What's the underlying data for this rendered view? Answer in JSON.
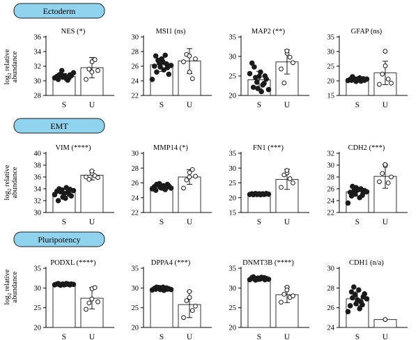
{
  "figure": {
    "ylabel_line1": "log",
    "ylabel_sub": "2",
    "ylabel_line1_rest": " relative",
    "ylabel_line2": "abundance",
    "sections": [
      "Ectoderm",
      "EMT",
      "Pluripotency"
    ]
  },
  "chart_data": [
    {
      "type": "bar",
      "section": "Ectoderm",
      "title": "NES (*)",
      "categories": [
        "S",
        "U"
      ],
      "values": [
        30.6,
        31.8
      ],
      "error": [
        0.4,
        1.4
      ],
      "ylim": [
        28,
        36
      ],
      "yticks": [
        28,
        30,
        32,
        34,
        36
      ],
      "points": {
        "S": [
          30.4,
          30.6,
          30.8,
          30.2,
          30.9,
          30.5,
          31.4,
          30.7,
          30.3,
          30.6,
          30.1,
          30.8,
          30.4,
          30.7,
          31.1
        ],
        "U": [
          30.2,
          31.6,
          32.6,
          31.2,
          32.9,
          31.4
        ]
      }
    },
    {
      "type": "bar",
      "section": "Ectoderm",
      "title": "MSI1 (ns)",
      "categories": [
        "S",
        "U"
      ],
      "values": [
        26.2,
        26.7
      ],
      "error": [
        0.9,
        1.7
      ],
      "ylim": [
        22,
        30
      ],
      "yticks": [
        22,
        24,
        26,
        28,
        30
      ],
      "points": {
        "S": [
          24.2,
          26.0,
          25.2,
          27.4,
          26.8,
          25.9,
          26.4,
          27.0,
          25.5,
          26.6,
          27.5,
          25.8,
          26.3,
          24.9,
          26.1
        ],
        "U": [
          26.6,
          27.6,
          25.2,
          27.4,
          24.3,
          27.0
        ]
      }
    },
    {
      "type": "bar",
      "section": "Ectoderm",
      "title": "MAP2 (**)",
      "categories": [
        "S",
        "U"
      ],
      "values": [
        24.0,
        28.6
      ],
      "error": [
        2.2,
        3.1
      ],
      "ylim": [
        20,
        35
      ],
      "yticks": [
        20,
        25,
        30,
        35
      ],
      "points": {
        "S": [
          25.6,
          28.3,
          27.3,
          22.1,
          24.6,
          21.8,
          23.4,
          24.9,
          21.0,
          26.0,
          22.7,
          25.0,
          23.1,
          24.2,
          21.5
        ],
        "U": [
          26.8,
          23.2,
          30.8,
          31.4,
          29.8,
          28.4
        ]
      }
    },
    {
      "type": "bar",
      "section": "Ectoderm",
      "title": "GFAP (ns)",
      "categories": [
        "S",
        "U"
      ],
      "values": [
        20.4,
        22.7
      ],
      "error": [
        0.6,
        4.0
      ],
      "ylim": [
        15,
        35
      ],
      "yticks": [
        15,
        20,
        25,
        30,
        35
      ],
      "points": {
        "S": [
          20.1,
          20.5,
          21.4,
          20.2,
          20.8,
          19.8,
          20.4,
          20.6,
          21.0,
          20.3,
          19.9,
          20.7,
          20.5,
          20.2,
          20.6
        ],
        "U": [
          18.8,
          22.3,
          25.1,
          30.1,
          20.6,
          19.2
        ]
      }
    },
    {
      "type": "bar",
      "section": "EMT",
      "title": "VIM (****)",
      "categories": [
        "S",
        "U"
      ],
      "values": [
        33.4,
        36.3
      ],
      "error": [
        0.7,
        0.8
      ],
      "ylim": [
        30,
        40
      ],
      "yticks": [
        30,
        32,
        34,
        36,
        38,
        40
      ],
      "points": {
        "S": [
          33.0,
          33.6,
          34.0,
          32.0,
          33.5,
          32.6,
          33.8,
          33.2,
          34.2,
          32.4,
          33.4,
          33.9,
          33.1,
          32.8,
          33.7
        ],
        "U": [
          36.0,
          35.6,
          36.6,
          37.0,
          36.2,
          35.9
        ]
      }
    },
    {
      "type": "bar",
      "section": "EMT",
      "title": "MMP14 (*)",
      "categories": [
        "S",
        "U"
      ],
      "values": [
        25.5,
        26.8
      ],
      "error": [
        0.4,
        1.0
      ],
      "ylim": [
        22,
        30
      ],
      "yticks": [
        22,
        24,
        26,
        28,
        30
      ],
      "points": {
        "S": [
          25.2,
          25.5,
          25.8,
          25.0,
          25.7,
          25.4,
          25.9,
          25.3,
          25.6,
          25.5,
          25.1,
          25.8,
          25.4,
          25.6,
          25.3
        ],
        "U": [
          25.3,
          26.4,
          27.4,
          26.8,
          27.8,
          26.9
        ]
      }
    },
    {
      "type": "bar",
      "section": "EMT",
      "title": "FN1 (***)",
      "categories": [
        "S",
        "U"
      ],
      "values": [
        21.2,
        26.2
      ],
      "error": [
        0.2,
        3.4
      ],
      "ylim": [
        15,
        35
      ],
      "yticks": [
        15,
        20,
        25,
        30,
        35
      ],
      "points": {
        "S": [
          21.1,
          21.3,
          21.2,
          21.0,
          21.4,
          21.2,
          21.1,
          21.3,
          21.2,
          21.0,
          21.3,
          21.2,
          21.1,
          21.4,
          21.2
        ],
        "U": [
          23.5,
          27.7,
          28.4,
          29.2,
          26.4,
          25.0
        ]
      }
    },
    {
      "type": "bar",
      "section": "EMT",
      "title": "CDH2 (***)",
      "categories": [
        "S",
        "U"
      ],
      "values": [
        25.5,
        28.1
      ],
      "error": [
        0.7,
        2.0
      ],
      "ylim": [
        22,
        32
      ],
      "yticks": [
        22,
        24,
        26,
        28,
        30,
        32
      ],
      "points": {
        "S": [
          23.6,
          25.4,
          26.4,
          24.8,
          25.6,
          26.2,
          25.1,
          25.8,
          24.5,
          25.9,
          26.0,
          25.3,
          24.9,
          25.7,
          25.5
        ],
        "U": [
          27.2,
          28.6,
          29.9,
          30.1,
          27.0,
          28.0
        ]
      }
    },
    {
      "type": "bar",
      "section": "Pluripotency",
      "title": "PODXL (****)",
      "categories": [
        "S",
        "U"
      ],
      "values": [
        30.9,
        27.4
      ],
      "error": [
        0.2,
        2.7
      ],
      "ylim": [
        20,
        35
      ],
      "yticks": [
        20,
        25,
        30,
        35
      ],
      "points": {
        "S": [
          30.8,
          31.0,
          30.9,
          31.1,
          30.7,
          31.0,
          30.9,
          30.8,
          31.1,
          30.9,
          31.0,
          30.8,
          30.9,
          31.0,
          30.9
        ],
        "U": [
          24.6,
          26.2,
          29.8,
          27.2,
          30.1,
          26.5
        ]
      }
    },
    {
      "type": "bar",
      "section": "Pluripotency",
      "title": "DPPA4 (***)",
      "categories": [
        "S",
        "U"
      ],
      "values": [
        29.8,
        25.8
      ],
      "error": [
        0.3,
        3.3
      ],
      "ylim": [
        20,
        35
      ],
      "yticks": [
        20,
        25,
        30,
        35
      ],
      "points": {
        "S": [
          29.5,
          29.9,
          30.2,
          29.7,
          30.0,
          29.6,
          30.1,
          29.8,
          29.4,
          30.2,
          29.9,
          29.7,
          30.0,
          29.8,
          29.6
        ],
        "U": [
          22.5,
          26.8,
          27.6,
          29.1,
          24.3,
          25.4
        ]
      }
    },
    {
      "type": "bar",
      "section": "Pluripotency",
      "title": "DNMT3B (****)",
      "categories": [
        "S",
        "U"
      ],
      "values": [
        32.4,
        28.3
      ],
      "error": [
        0.3,
        2.0
      ],
      "ylim": [
        20,
        35
      ],
      "yticks": [
        20,
        25,
        30,
        35
      ],
      "points": {
        "S": [
          32.1,
          32.6,
          32.3,
          32.8,
          32.0,
          32.5,
          32.4,
          32.2,
          32.7,
          32.3,
          32.5,
          32.1,
          32.6,
          32.4,
          32.2
        ],
        "U": [
          26.4,
          28.4,
          30.2,
          29.5,
          27.6,
          28.0
        ]
      }
    },
    {
      "type": "bar",
      "section": "Pluripotency",
      "title": "CDH1 (n/a)",
      "categories": [
        "S",
        "U"
      ],
      "values": [
        26.9,
        24.8
      ],
      "error": [
        0.7,
        0
      ],
      "ylim": [
        24,
        30
      ],
      "yticks": [
        24,
        26,
        28,
        30
      ],
      "points": {
        "S": [
          25.6,
          26.2,
          27.0,
          27.6,
          28.1,
          26.4,
          27.3,
          26.8,
          25.9,
          27.8,
          26.6,
          27.1,
          26.3,
          27.4,
          26.9
        ],
        "U": [
          24.8
        ]
      }
    }
  ]
}
